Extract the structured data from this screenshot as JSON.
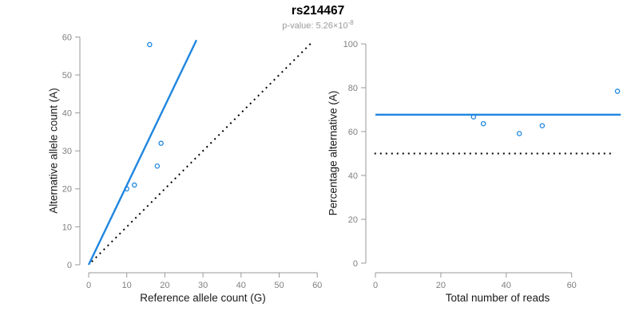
{
  "header": {
    "title": "rs214467",
    "pvalue_prefix": "p-value: 5.26×10",
    "pvalue_exponent": "-8"
  },
  "colors": {
    "accent_blue": "#1e86e0",
    "reference_black": "#000000",
    "axis_line_gray": "#999999",
    "tick_label_gray": "#808080",
    "axis_label_dark": "#1a1a1a",
    "subtitle_gray": "#999999"
  },
  "chart_data": [
    {
      "type": "scatter",
      "panel": "left",
      "xlabel": "Reference allele count (G)",
      "ylabel": "Alternative allele count (A)",
      "xlim": [
        0,
        60
      ],
      "ylim": [
        0,
        60
      ],
      "xticks": [
        0,
        10,
        20,
        30,
        40,
        50,
        60
      ],
      "yticks": [
        0,
        10,
        20,
        30,
        40,
        50,
        60
      ],
      "grid": false,
      "points": [
        [
          10,
          20
        ],
        [
          12,
          21
        ],
        [
          18,
          26
        ],
        [
          19,
          32
        ],
        [
          16,
          58
        ]
      ],
      "lines": [
        {
          "name": "fit-line",
          "style": "solid",
          "color": "blue",
          "x1": 0,
          "y1": 0,
          "x2": 28.3,
          "y2": 59.2,
          "slope": 2.09
        },
        {
          "name": "identity-line",
          "style": "dotted",
          "color": "black",
          "x1": 0.8,
          "y1": 0.8,
          "x2": 58.3,
          "y2": 58.3,
          "slope": 1
        }
      ]
    },
    {
      "type": "scatter",
      "panel": "right",
      "xlabel": "Total number of reads",
      "ylabel": "Percentage alternative (A)",
      "xlim": [
        0,
        77
      ],
      "ylim": [
        0,
        100
      ],
      "xticks": [
        0,
        20,
        40,
        60
      ],
      "yticks": [
        0,
        20,
        40,
        60,
        80,
        100
      ],
      "grid": false,
      "points": [
        [
          30,
          66.7
        ],
        [
          33,
          63.6
        ],
        [
          44,
          59.1
        ],
        [
          51,
          62.7
        ],
        [
          74,
          78.4
        ]
      ],
      "lines": [
        {
          "name": "mean-percentage-line",
          "style": "solid",
          "color": "blue",
          "x1": 0,
          "y1": 67.7,
          "x2": 75,
          "y2": 67.7
        },
        {
          "name": "fifty-percent-line",
          "style": "dotted",
          "color": "black",
          "x1": -0.3,
          "y1": 50,
          "x2": 72.5,
          "y2": 50
        }
      ]
    }
  ]
}
